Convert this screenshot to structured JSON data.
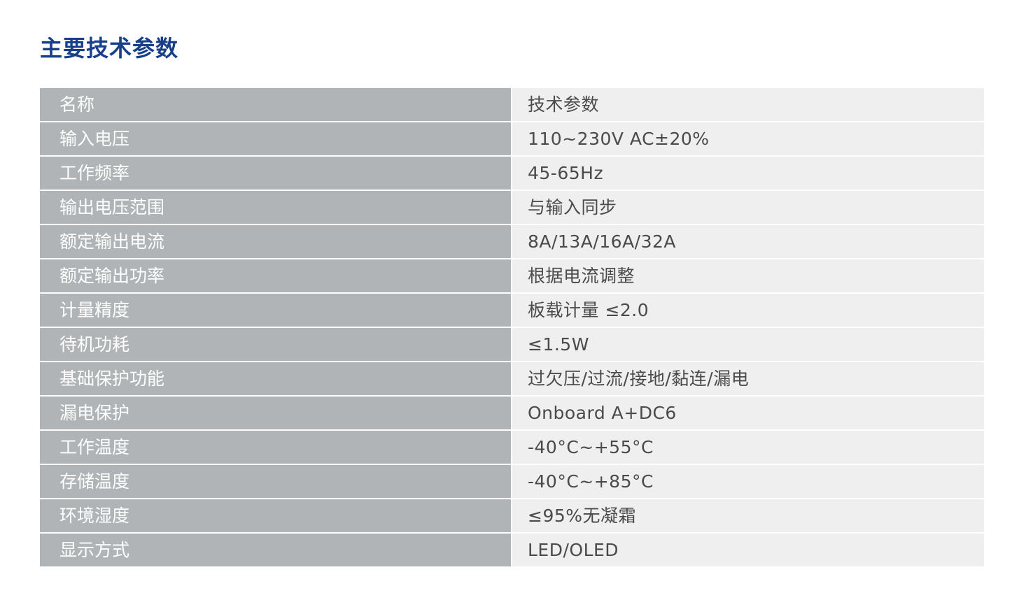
{
  "title": "主要技术参数",
  "table": {
    "header": {
      "name": "名称",
      "value": "技术参数"
    },
    "rows": [
      {
        "name": "输入电压",
        "value": "110~230V AC±20%"
      },
      {
        "name": "工作频率",
        "value": "45-65Hz"
      },
      {
        "name": "输出电压范围",
        "value": "与输入同步"
      },
      {
        "name": "额定输出电流",
        "value": "8A/13A/16A/32A"
      },
      {
        "name": "额定输出功率",
        "value": "根据电流调整"
      },
      {
        "name": "计量精度",
        "value": "板载计量 ≤2.0"
      },
      {
        "name": "待机功耗",
        "value": "≤1.5W"
      },
      {
        "name": "基础保护功能",
        "value": "过欠压/过流/接地/黏连/漏电"
      },
      {
        "name": "漏电保护",
        "value": "Onboard A+DC6"
      },
      {
        "name": "工作温度",
        "value": "-40°C~+55°C"
      },
      {
        "name": "存储温度",
        "value": "-40°C~+85°C"
      },
      {
        "name": "环境湿度",
        "value": "≤95%无凝霜"
      },
      {
        "name": "显示方式",
        "value": "LED/OLED"
      }
    ]
  }
}
